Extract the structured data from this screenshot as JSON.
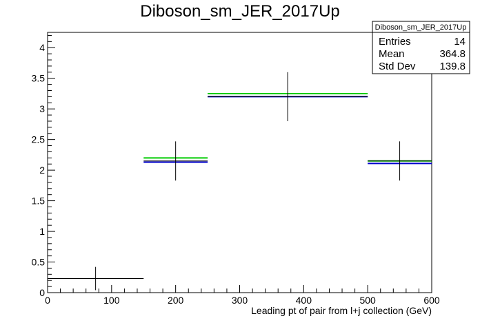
{
  "chart_data": {
    "type": "histogram",
    "title": "Diboson_sm_JER_2017Up",
    "xlabel": "Leading pt of pair from l+j collection (GeV)",
    "ylabel": "",
    "xlim": [
      0,
      600
    ],
    "ylim": [
      0,
      4.25
    ],
    "x_ticks": [
      "0",
      "100",
      "200",
      "300",
      "400",
      "500",
      "600"
    ],
    "y_ticks": [
      "0",
      "0.5",
      "1",
      "1.5",
      "2",
      "2.5",
      "3",
      "3.5",
      "4"
    ],
    "bins": [
      {
        "xlow": 0,
        "xhigh": 150,
        "center": 75,
        "value": 0.23,
        "err": 0.19
      },
      {
        "xlow": 150,
        "xhigh": 250,
        "center": 200,
        "value": 2.15,
        "err": 0.32
      },
      {
        "xlow": 250,
        "xhigh": 500,
        "center": 375,
        "value": 3.2,
        "err": 0.4
      },
      {
        "xlow": 500,
        "xhigh": 600,
        "center": 550,
        "value": 2.15,
        "err": 0.32
      }
    ],
    "overlays": [
      {
        "color": "#00cc00",
        "values": [
          null,
          2.2,
          3.25,
          2.15
        ]
      },
      {
        "color": "#0000cc",
        "values": [
          null,
          2.13,
          3.2,
          2.11
        ]
      }
    ],
    "stats": {
      "title": "Diboson_sm_JER_2017Up",
      "rows": [
        {
          "label": "Entries",
          "value": "14"
        },
        {
          "label": "Mean",
          "value": "364.8"
        },
        {
          "label": "Std Dev",
          "value": "139.8"
        }
      ]
    }
  }
}
